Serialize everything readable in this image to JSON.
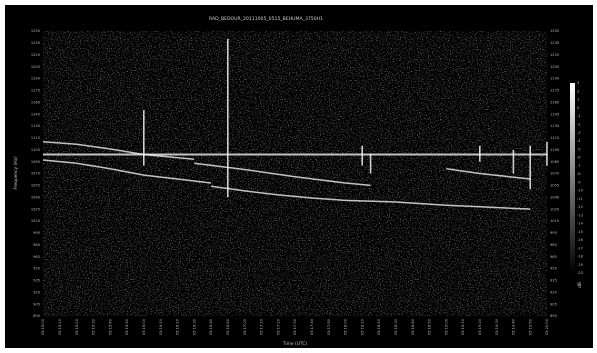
{
  "chart_data": {
    "type": "heatmap",
    "title": "RAD_BEDOUR_20111005_0515_BEHUMA_3750H1",
    "xlabel": "Time (UTC)",
    "ylabel": "Frequency (Hz)",
    "colorbar_label": "dB",
    "colormap": "grayscale",
    "background_color": "#000000",
    "trace_color": "#ffffff",
    "grid": false,
    "y_ticks": [
      "1250",
      "1235",
      "1220",
      "1205",
      "1190",
      "1175",
      "1160",
      "1145",
      "1130",
      "1115",
      "1100",
      "1085",
      "1070",
      "1055",
      "1040",
      "1025",
      "1010",
      "995",
      "980",
      "965",
      "950",
      "935",
      "920",
      "905",
      "890"
    ],
    "x_ticks": [
      "05:15:00",
      "05:15:10",
      "05:15:20",
      "05:15:30",
      "05:15:40",
      "05:15:50",
      "05:16:00",
      "05:16:10",
      "05:16:20",
      "05:16:30",
      "05:16:40",
      "05:16:50",
      "05:17:00",
      "05:17:10",
      "05:17:20",
      "05:17:30",
      "05:17:40",
      "05:17:50",
      "05:18:00",
      "05:18:10",
      "05:18:20",
      "05:18:30",
      "05:18:40",
      "05:18:50",
      "05:19:00",
      "05:19:10",
      "05:19:20",
      "05:19:30",
      "05:19:40",
      "05:19:50",
      "05:20:00"
    ],
    "colorbar_ticks": [
      "3",
      "2",
      "1",
      "0",
      "-1",
      "-2",
      "-3",
      "-4",
      "-5",
      "-6",
      "-7",
      "-8",
      "-9",
      "-10",
      "-11",
      "-12",
      "-13",
      "-14",
      "-15",
      "-16",
      "-17",
      "-18",
      "-19",
      "-20"
    ],
    "colorbar_range": [
      -20,
      3
    ],
    "continuous_carrier": {
      "frequency": 1094
    },
    "meteor_echoes": [
      {
        "time": "05:16:00",
        "freq_range": [
          1080,
          1150
        ]
      },
      {
        "time": "05:16:50",
        "freq_range": [
          1040,
          1240
        ]
      },
      {
        "time": "05:18:10",
        "freq_range": [
          1080,
          1105
        ]
      },
      {
        "time": "05:18:15",
        "freq_range": [
          1070,
          1095
        ]
      },
      {
        "time": "05:19:20",
        "freq_range": [
          1085,
          1105
        ]
      },
      {
        "time": "05:19:40",
        "freq_range": [
          1070,
          1100
        ]
      },
      {
        "time": "05:19:50",
        "freq_range": [
          1050,
          1105
        ]
      },
      {
        "time": "05:20:00",
        "freq_range": [
          1080,
          1110
        ]
      }
    ],
    "doppler_traces": [
      {
        "points": [
          [
            "05:15:00",
            1110
          ],
          [
            "05:15:20",
            1107
          ],
          [
            "05:15:40",
            1101
          ],
          [
            "05:16:00",
            1094
          ],
          [
            "05:16:30",
            1088
          ]
        ]
      },
      {
        "points": [
          [
            "05:16:30",
            1083
          ],
          [
            "05:17:00",
            1075
          ],
          [
            "05:17:30",
            1066
          ],
          [
            "05:18:00",
            1058
          ],
          [
            "05:18:15",
            1055
          ]
        ]
      },
      {
        "points": [
          [
            "05:15:00",
            1087
          ],
          [
            "05:15:20",
            1083
          ],
          [
            "05:15:40",
            1076
          ],
          [
            "05:16:00",
            1068
          ],
          [
            "05:16:20",
            1063
          ],
          [
            "05:16:40",
            1058
          ]
        ]
      },
      {
        "points": [
          [
            "05:16:40",
            1054
          ],
          [
            "05:17:00",
            1048
          ],
          [
            "05:17:20",
            1043
          ],
          [
            "05:17:40",
            1039
          ],
          [
            "05:18:00",
            1036
          ],
          [
            "05:18:30",
            1034
          ],
          [
            "05:19:00",
            1030
          ],
          [
            "05:19:20",
            1028
          ],
          [
            "05:19:50",
            1025
          ]
        ]
      },
      {
        "points": [
          [
            "05:19:00",
            1076
          ],
          [
            "05:19:20",
            1070
          ],
          [
            "05:19:50",
            1063
          ]
        ]
      }
    ]
  }
}
